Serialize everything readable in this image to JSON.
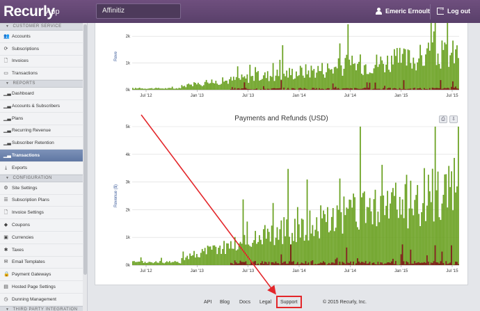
{
  "header": {
    "brand": "Recurly",
    "brand_sub": "App",
    "site_selector": "Affinitiz",
    "user_name": "Emeric Ernoult",
    "logout_label": "Log out"
  },
  "sidebar": {
    "sections": [
      {
        "title": "CUSTOMER SERVICE",
        "items": [
          {
            "label": "Accounts",
            "icon": "users-icon"
          },
          {
            "label": "Subscriptions",
            "icon": "refresh-icon"
          },
          {
            "label": "Invoices",
            "icon": "document-icon"
          },
          {
            "label": "Transactions",
            "icon": "card-icon"
          }
        ]
      },
      {
        "title": "REPORTS",
        "items": [
          {
            "label": "Dashboard",
            "icon": "bar-chart-icon"
          },
          {
            "label": "Accounts & Subscribers",
            "icon": "bar-chart-icon"
          },
          {
            "label": "Plans",
            "icon": "bar-chart-icon"
          },
          {
            "label": "Recurring Revenue",
            "icon": "bar-chart-icon"
          },
          {
            "label": "Subscriber Retention",
            "icon": "bar-chart-icon"
          },
          {
            "label": "Transactions",
            "icon": "bar-chart-icon",
            "active": true
          },
          {
            "label": "Exports",
            "icon": "download-icon"
          }
        ]
      },
      {
        "title": "CONFIGURATION",
        "items": [
          {
            "label": "Site Settings",
            "icon": "gear-icon"
          },
          {
            "label": "Subscription Plans",
            "icon": "list-icon"
          },
          {
            "label": "Invoice Settings",
            "icon": "document-icon"
          },
          {
            "label": "Coupons",
            "icon": "tag-icon"
          },
          {
            "label": "Currencies",
            "icon": "money-icon"
          },
          {
            "label": "Taxes",
            "icon": "asterisk-icon"
          },
          {
            "label": "Email Templates",
            "icon": "mail-icon"
          },
          {
            "label": "Payment Gateways",
            "icon": "lock-icon"
          },
          {
            "label": "Hosted Page Settings",
            "icon": "page-icon"
          },
          {
            "label": "Dunning Management",
            "icon": "clock-icon"
          }
        ]
      },
      {
        "title": "THIRD PARTY INTEGRATION",
        "items": []
      }
    ]
  },
  "chart_data": [
    {
      "type": "bar",
      "title": "",
      "ylabel": "Reve",
      "x_ticks": [
        "Jul '12",
        "Jan '13",
        "Jul '13",
        "Jan '14",
        "Jul '14",
        "Jan '15",
        "Jul '15"
      ],
      "y_ticks": [
        "0k",
        "1k",
        "2k"
      ],
      "ylim": [
        0,
        2.5
      ],
      "series": [
        {
          "name": "",
          "color": "#6aa121",
          "description": "daily payments, rising from ~0.1k in mid-2012 to ~1-2.5k by 2015"
        },
        {
          "name": "",
          "color": "#7a1010",
          "description": "daily refunds, mostly near 0"
        }
      ]
    },
    {
      "type": "bar",
      "title": "Payments and Refunds (USD)",
      "ylabel": "Revenue ($)",
      "x_ticks": [
        "Jul '12",
        "Jan '13",
        "Jul '13",
        "Jan '14",
        "Jul '14",
        "Jan '15",
        "Jul '15"
      ],
      "y_ticks": [
        "0k",
        "1k",
        "2k",
        "3k",
        "4k",
        "5k"
      ],
      "ylim": [
        0,
        5
      ],
      "series": [
        {
          "name": "",
          "color": "#6aa121"
        },
        {
          "name": "",
          "color": "#7a1010"
        }
      ]
    }
  ],
  "footer": {
    "links": [
      "API",
      "Blog",
      "Docs",
      "Legal",
      "Support"
    ],
    "copyright": "© 2015 Recurly, Inc."
  },
  "colors": {
    "header": "#5f456f",
    "accent_active": "#6a82ac",
    "annotation": "#e3262a",
    "payments": "#6aa121",
    "refunds": "#7a1010"
  }
}
